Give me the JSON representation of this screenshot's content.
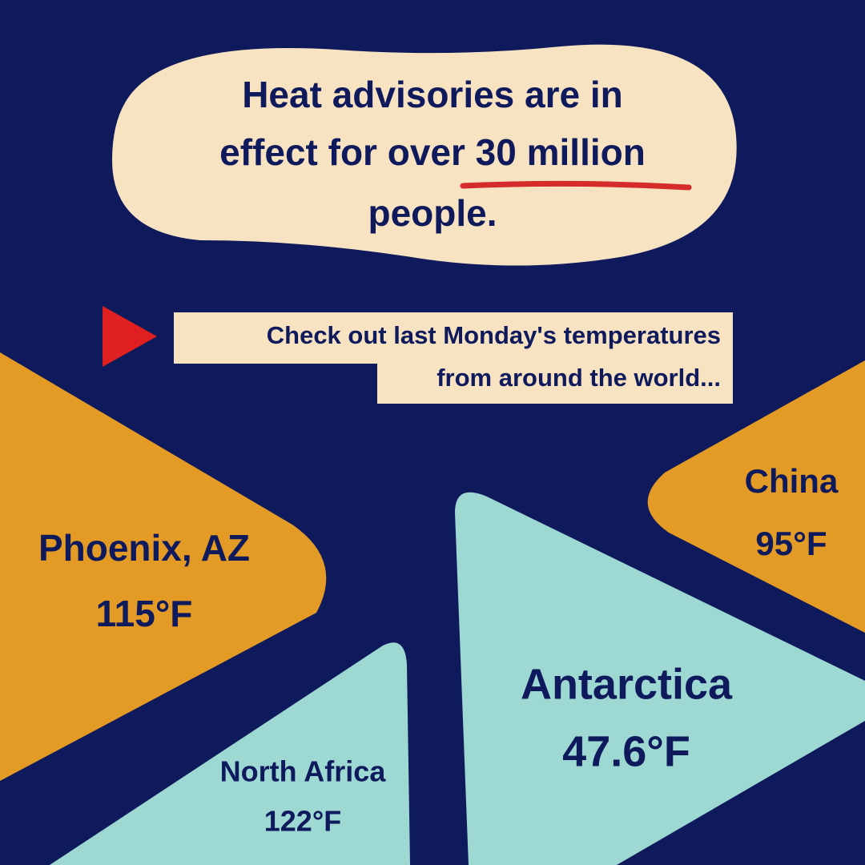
{
  "headline": {
    "line1": "Heat advisories are in",
    "line2": "effect for over",
    "highlight": "30 million",
    "line3": "people."
  },
  "intro": {
    "line1": "Check out last Monday's temperatures",
    "line2": "from around the world..."
  },
  "locations": [
    {
      "name": "Phoenix, AZ",
      "temperature": "115°F"
    },
    {
      "name": "China",
      "temperature": "95°F"
    },
    {
      "name": "Antarctica",
      "temperature": "47.6°F"
    },
    {
      "name": "North Africa",
      "temperature": "122°F"
    }
  ]
}
